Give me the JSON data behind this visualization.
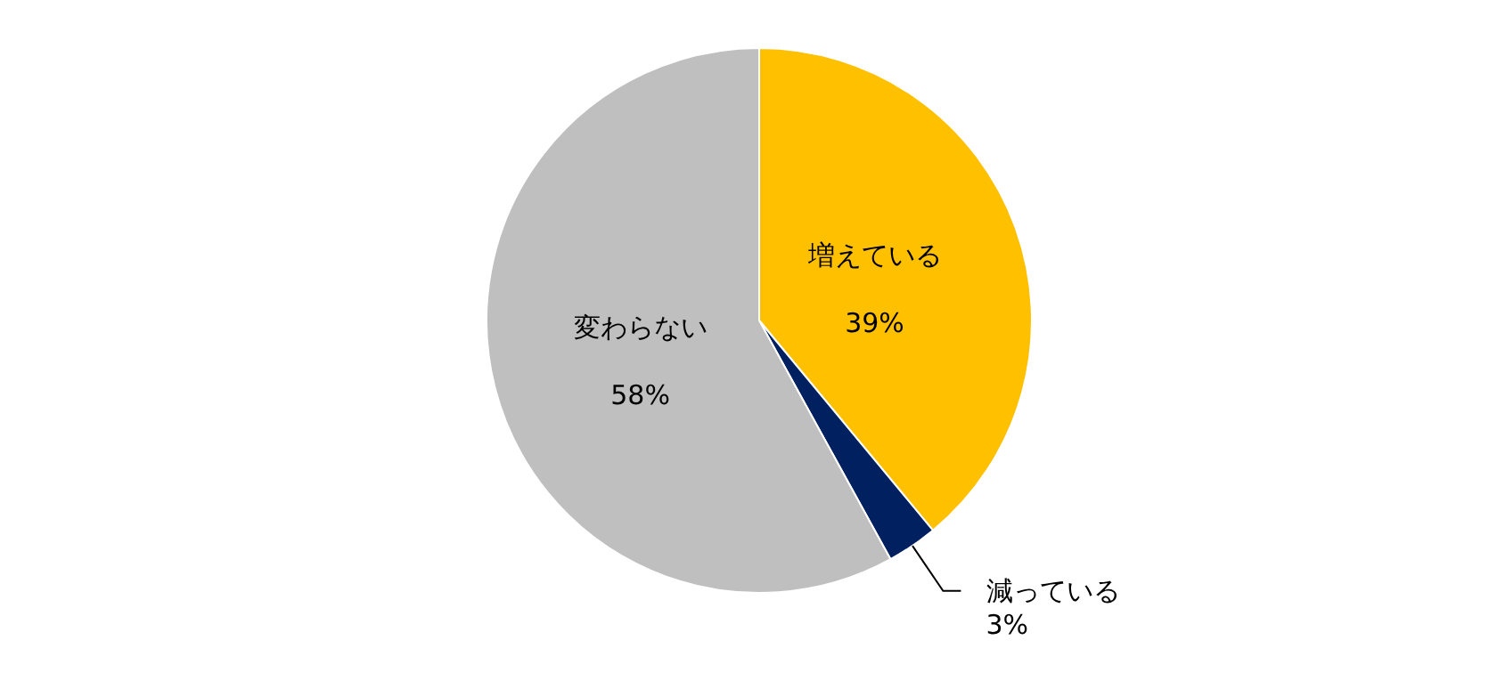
{
  "chart_data": {
    "type": "pie",
    "categories": [
      "増えている",
      "減っている",
      "変わらない"
    ],
    "values": [
      39,
      3,
      58
    ],
    "value_labels": [
      "39%",
      "3%",
      "58%"
    ],
    "colors": [
      "#ffc000",
      "#002060",
      "#bfbfbf"
    ]
  }
}
